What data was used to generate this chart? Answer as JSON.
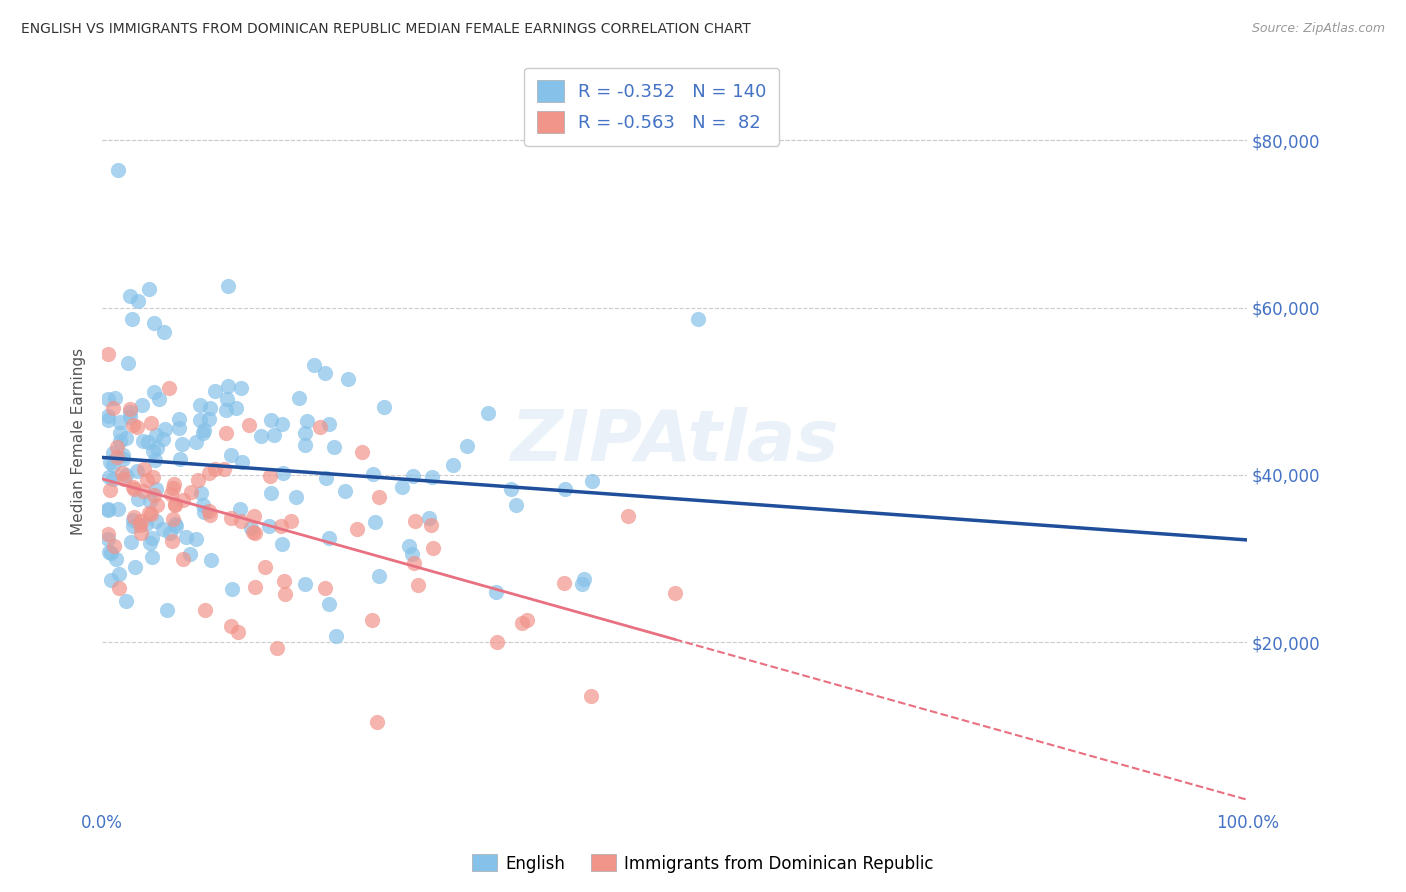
{
  "title": "ENGLISH VS IMMIGRANTS FROM DOMINICAN REPUBLIC MEDIAN FEMALE EARNINGS CORRELATION CHART",
  "source": "Source: ZipAtlas.com",
  "ylabel": "Median Female Earnings",
  "ylim": [
    0,
    88000
  ],
  "xlim": [
    0,
    1.0
  ],
  "english_color": "#85C1E9",
  "immigrant_color": "#F1948A",
  "english_line_color": "#1F4E9B",
  "immigrant_line_color": "#E87080",
  "R_english": -0.352,
  "N_english": 140,
  "R_immigrant": -0.563,
  "N_immigrant": 82,
  "legend_label_english": "English",
  "legend_label_immigrant": "Immigrants from Dominican Republic",
  "watermark": "ZIPAtlas",
  "background_color": "#ffffff",
  "grid_color": "#cccccc",
  "title_color": "#333333",
  "axis_label_color": "#4472C4",
  "right_ytick_labels": [
    "",
    "$20,000",
    "$40,000",
    "$60,000",
    "$80,000"
  ]
}
